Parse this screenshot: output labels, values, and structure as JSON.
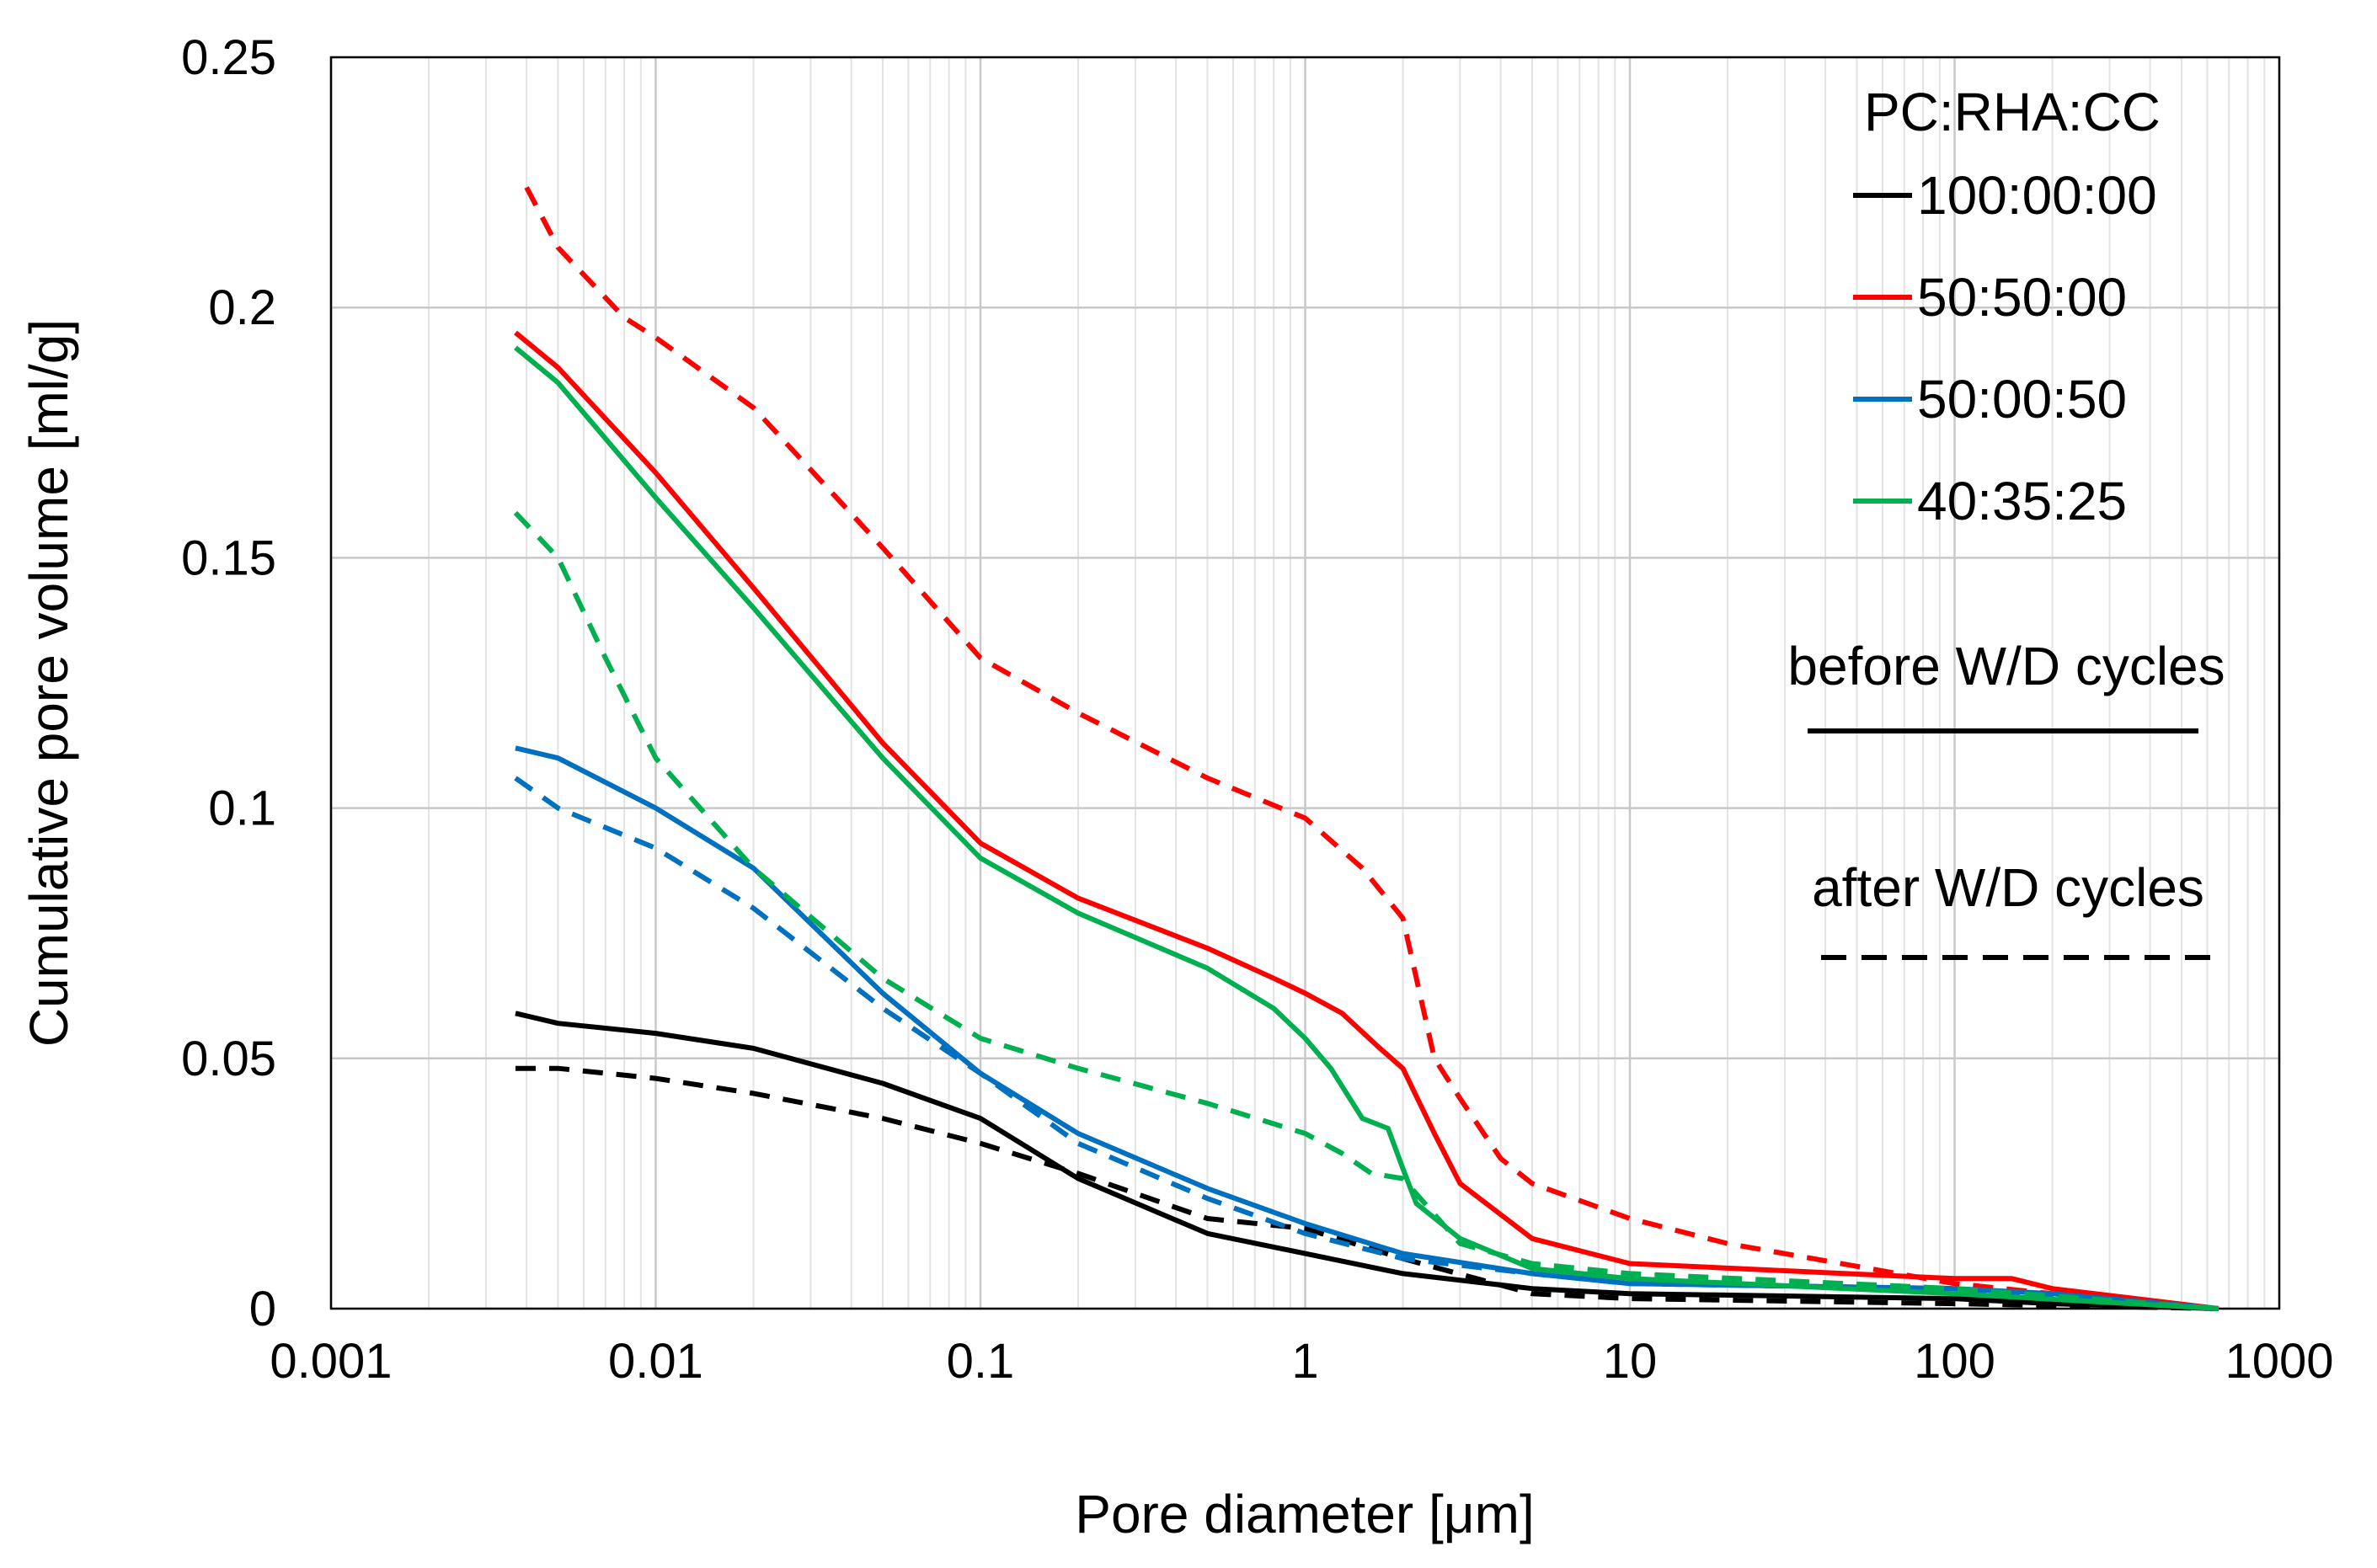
{
  "chart_data": {
    "type": "line",
    "xlabel": "Pore diameter [μm]",
    "ylabel": "Cumulative pore volume [ml/g]",
    "xscale": "log",
    "xlim": [
      0.001,
      1000
    ],
    "ylim": [
      0,
      0.25
    ],
    "x_ticks": [
      "0.001",
      "0.01",
      "0.1",
      "1",
      "10",
      "100",
      "1000"
    ],
    "y_ticks": [
      "0",
      "0.05",
      "0.1",
      "0.15",
      "0.2",
      "0.25"
    ],
    "grid": true,
    "legend_title": "PC:RHA:CC",
    "legend_position": "top-right",
    "style_notes": [
      "before W/D cycles",
      "after W/D cycles"
    ],
    "series": [
      {
        "name": "100:00:00",
        "color": "#000000",
        "condition": "before",
        "x": [
          0.0037,
          0.005,
          0.01,
          0.02,
          0.05,
          0.1,
          0.2,
          0.5,
          1,
          2,
          5,
          10,
          100,
          200,
          650
        ],
        "y": [
          0.059,
          0.057,
          0.055,
          0.052,
          0.045,
          0.038,
          0.026,
          0.015,
          0.011,
          0.007,
          0.004,
          0.003,
          0.002,
          0.001,
          0
        ]
      },
      {
        "name": "100:00:00",
        "color": "#000000",
        "condition": "after",
        "x": [
          0.0037,
          0.005,
          0.01,
          0.02,
          0.05,
          0.1,
          0.2,
          0.5,
          1,
          2,
          5,
          10,
          100,
          650
        ],
        "y": [
          0.048,
          0.048,
          0.046,
          0.043,
          0.038,
          0.033,
          0.027,
          0.018,
          0.016,
          0.01,
          0.003,
          0.002,
          0.001,
          0
        ]
      },
      {
        "name": "50:50:00",
        "color": "#ff0000",
        "condition": "before",
        "x": [
          0.0037,
          0.005,
          0.01,
          0.02,
          0.05,
          0.1,
          0.2,
          0.5,
          0.8,
          1,
          1.3,
          1.7,
          2,
          2.5,
          3,
          5,
          10,
          100,
          150,
          200,
          650
        ],
        "y": [
          0.195,
          0.188,
          0.167,
          0.144,
          0.113,
          0.093,
          0.082,
          0.072,
          0.066,
          0.063,
          0.059,
          0.052,
          0.048,
          0.035,
          0.025,
          0.014,
          0.009,
          0.006,
          0.006,
          0.004,
          0
        ]
      },
      {
        "name": "50:50:00",
        "color": "#ff0000",
        "condition": "after",
        "x": [
          0.004,
          0.005,
          0.008,
          0.01,
          0.02,
          0.05,
          0.1,
          0.2,
          0.5,
          1,
          1.5,
          2,
          2.5,
          3,
          4,
          5,
          10,
          20,
          100,
          200,
          650
        ],
        "y": [
          0.224,
          0.212,
          0.198,
          0.194,
          0.18,
          0.152,
          0.13,
          0.119,
          0.106,
          0.098,
          0.088,
          0.078,
          0.05,
          0.042,
          0.03,
          0.025,
          0.018,
          0.013,
          0.005,
          0.003,
          0
        ]
      },
      {
        "name": "50:00:50",
        "color": "#0070c0",
        "condition": "before",
        "x": [
          0.0037,
          0.005,
          0.01,
          0.02,
          0.05,
          0.1,
          0.2,
          0.5,
          1,
          2,
          5,
          10,
          100,
          200,
          650
        ],
        "y": [
          0.112,
          0.11,
          0.1,
          0.088,
          0.063,
          0.047,
          0.035,
          0.024,
          0.017,
          0.011,
          0.007,
          0.005,
          0.004,
          0.003,
          0
        ]
      },
      {
        "name": "50:00:50",
        "color": "#0070c0",
        "condition": "after",
        "x": [
          0.0037,
          0.005,
          0.01,
          0.02,
          0.05,
          0.1,
          0.2,
          0.5,
          1,
          2,
          5,
          10,
          100,
          200,
          650
        ],
        "y": [
          0.106,
          0.1,
          0.092,
          0.08,
          0.06,
          0.047,
          0.033,
          0.022,
          0.015,
          0.01,
          0.007,
          0.005,
          0.004,
          0.002,
          0
        ]
      },
      {
        "name": "40:35:25",
        "color": "#00b050",
        "condition": "before",
        "x": [
          0.0037,
          0.005,
          0.01,
          0.02,
          0.05,
          0.1,
          0.2,
          0.5,
          0.8,
          1,
          1.2,
          1.5,
          1.8,
          2,
          2.2,
          3,
          5,
          10,
          100,
          650
        ],
        "y": [
          0.192,
          0.185,
          0.162,
          0.14,
          0.11,
          0.09,
          0.079,
          0.068,
          0.06,
          0.054,
          0.048,
          0.038,
          0.036,
          0.028,
          0.021,
          0.014,
          0.008,
          0.006,
          0.003,
          0
        ]
      },
      {
        "name": "40:35:25",
        "color": "#00b050",
        "condition": "after",
        "x": [
          0.0037,
          0.005,
          0.007,
          0.01,
          0.02,
          0.05,
          0.1,
          0.2,
          0.5,
          1,
          1.3,
          1.6,
          2,
          3,
          5,
          10,
          100,
          650
        ],
        "y": [
          0.159,
          0.15,
          0.13,
          0.11,
          0.088,
          0.066,
          0.054,
          0.048,
          0.041,
          0.035,
          0.031,
          0.027,
          0.026,
          0.013,
          0.009,
          0.007,
          0.004,
          0
        ]
      }
    ]
  }
}
